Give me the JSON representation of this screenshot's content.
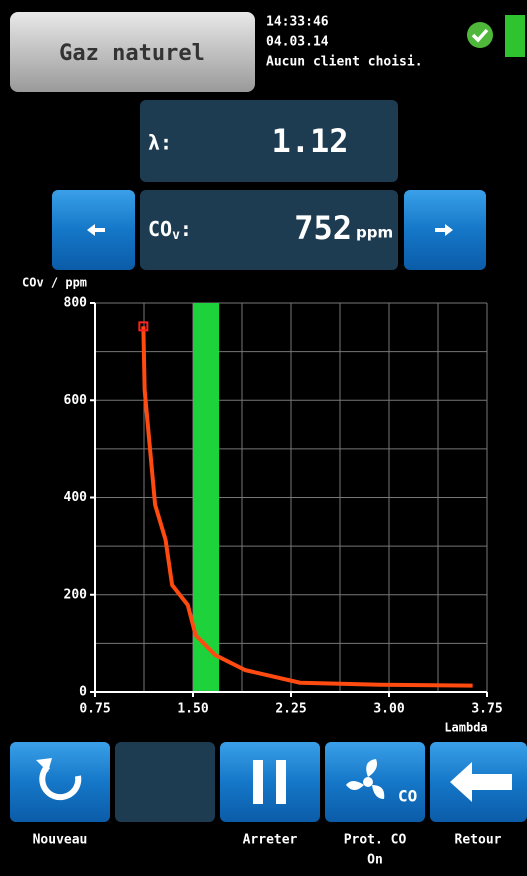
{
  "header": {
    "mode_button": "Gaz naturel",
    "time": "14:33:46",
    "date": "04.03.14",
    "client": "Aucun client choisi."
  },
  "readings": {
    "lambda": {
      "label": "λ:",
      "value": "1.12"
    },
    "co": {
      "label": "CO",
      "label_sub": "v",
      "label_end": ":",
      "value": "752",
      "unit": "ppm"
    }
  },
  "chart_data": {
    "type": "line",
    "y_label": "COv / ppm",
    "x_label": "Lambda",
    "x": [
      1.12,
      1.13,
      1.21,
      1.29,
      1.34,
      1.46,
      1.52,
      1.67,
      1.9,
      2.32,
      2.93,
      3.64
    ],
    "series": [
      {
        "name": "COv",
        "color": "#ff4a10",
        "values": [
          752,
          621,
          385,
          313,
          220,
          179,
          117,
          76,
          45,
          19,
          15,
          13
        ]
      }
    ],
    "marker_color": "#ff2020",
    "band": [
      1.5,
      1.7
    ],
    "band_color": "#1ed23c",
    "xlim": [
      0.75,
      3.75
    ],
    "ylim": [
      0,
      800
    ],
    "xticks": [
      0.75,
      {
        "value": 1.5,
        "label": "1.50"
      },
      2.25,
      {
        "value": 3,
        "label": "3.00"
      },
      3.75
    ],
    "yticks": [
      0,
      200,
      400,
      600,
      800
    ],
    "grid": true
  },
  "footer": {
    "buttons": [
      "Nouveau",
      "Arreter",
      "Prot. CO",
      "Retour"
    ],
    "prot_state": "On"
  }
}
